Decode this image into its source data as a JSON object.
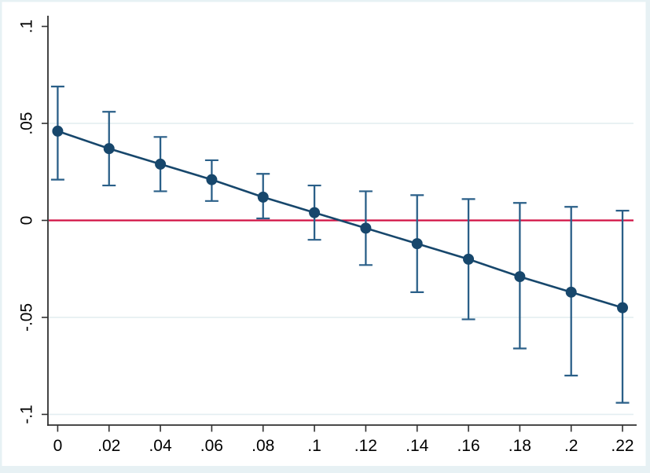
{
  "figure": {
    "kind": "stata-margins-plot",
    "background": "#ffffff",
    "frame_color": "#e7f1f4"
  },
  "colors": {
    "marker": "#17476c",
    "trend_line": "#17476c",
    "ci": "#2a5f88",
    "zero_line": "#d11243",
    "gridline": "#e4eef1",
    "axis": "#303030",
    "tick_label": "#000000"
  },
  "chart_data": {
    "type": "line",
    "subtype": "point-estimates-with-95ci",
    "title": "",
    "xlabel": "",
    "ylabel": "",
    "legend": "none",
    "grid": "horizontal",
    "x": [
      0,
      0.02,
      0.04,
      0.06,
      0.08,
      0.1,
      0.12,
      0.14,
      0.16,
      0.18,
      0.2,
      0.22
    ],
    "series": [
      {
        "name": "point-estimate",
        "values": [
          0.046,
          0.037,
          0.029,
          0.021,
          0.012,
          0.004,
          -0.004,
          -0.012,
          -0.02,
          -0.029,
          -0.037,
          -0.045
        ]
      }
    ],
    "ci_upper": [
      0.069,
      0.056,
      0.043,
      0.031,
      0.024,
      0.018,
      0.015,
      0.013,
      0.011,
      0.009,
      0.007,
      0.005
    ],
    "ci_lower": [
      0.021,
      0.018,
      0.015,
      0.01,
      0.001,
      -0.01,
      -0.023,
      -0.037,
      -0.051,
      -0.066,
      -0.08,
      -0.094
    ],
    "refline_y": 0,
    "x_ticks": {
      "values": [
        0,
        0.02,
        0.04,
        0.06,
        0.08,
        0.1,
        0.12,
        0.14,
        0.16,
        0.18,
        0.2,
        0.22
      ],
      "labels": [
        "0",
        ".02",
        ".04",
        ".06",
        ".08",
        ".1",
        ".12",
        ".14",
        ".16",
        ".18",
        ".2",
        ".22"
      ]
    },
    "y_ticks": {
      "values": [
        0.1,
        0.05,
        0,
        -0.05,
        -0.1
      ],
      "labels": [
        ".1",
        ".05",
        "0",
        "-.05",
        "-.1"
      ]
    },
    "gridlines_y": [
      0.05,
      -0.05,
      -0.1
    ],
    "xlim": [
      -0.0038,
      0.2255
    ],
    "ylim": [
      -0.1055,
      0.1055
    ]
  }
}
